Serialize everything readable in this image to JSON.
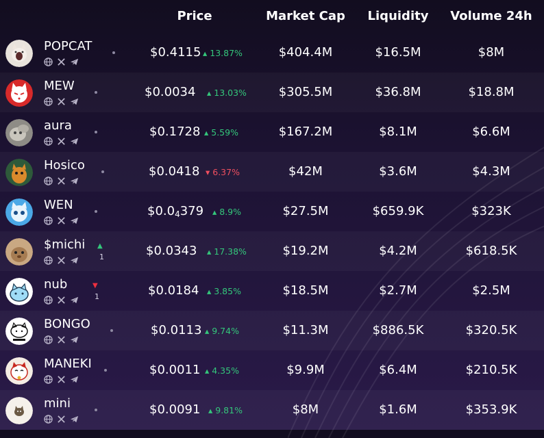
{
  "header": {
    "price": "Price",
    "market_cap": "Market Cap",
    "liquidity": "Liquidity",
    "volume": "Volume 24h"
  },
  "colors": {
    "up": "#34c77b",
    "down": "#ef4f5f",
    "background": "#1c1232"
  },
  "icons": [
    "globe-icon",
    "x-icon",
    "telegram-icon"
  ],
  "tokens": [
    {
      "name": "POPCAT",
      "price": "$0.4115",
      "change": "13.87%",
      "dir": "up",
      "mcap": "$404.4M",
      "liq": "$16.5M",
      "vol": "$8M"
    },
    {
      "name": "MEW",
      "price": "$0.0034",
      "change": "13.03%",
      "dir": "up",
      "mcap": "$305.5M",
      "liq": "$36.8M",
      "vol": "$18.8M"
    },
    {
      "name": "aura",
      "price": "$0.1728",
      "change": "5.59%",
      "dir": "up",
      "mcap": "$167.2M",
      "liq": "$8.1M",
      "vol": "$6.6M"
    },
    {
      "name": "Hosico",
      "price": "$0.0418",
      "change": "6.37%",
      "dir": "down",
      "mcap": "$42M",
      "liq": "$3.6M",
      "vol": "$4.3M"
    },
    {
      "name": "WEN",
      "price_a": "$0.0",
      "price_sub": "4",
      "price_b": "379",
      "change": "8.9%",
      "dir": "up",
      "mcap": "$27.5M",
      "liq": "$659.9K",
      "vol": "$323K"
    },
    {
      "name": "$michi",
      "rank_dir": "up",
      "rank_change": "1",
      "price": "$0.0343",
      "change": "17.38%",
      "dir": "up",
      "mcap": "$19.2M",
      "liq": "$4.2M",
      "vol": "$618.5K"
    },
    {
      "name": "nub",
      "rank_dir": "down",
      "rank_change": "1",
      "price": "$0.0184",
      "change": "3.85%",
      "dir": "up",
      "mcap": "$18.5M",
      "liq": "$2.7M",
      "vol": "$2.5M"
    },
    {
      "name": "BONGO",
      "price": "$0.0113",
      "change": "9.74%",
      "dir": "up",
      "mcap": "$11.3M",
      "liq": "$886.5K",
      "vol": "$320.5K"
    },
    {
      "name": "MANEKI",
      "price": "$0.0011",
      "change": "4.35%",
      "dir": "up",
      "mcap": "$9.9M",
      "liq": "$6.4M",
      "vol": "$210.5K"
    },
    {
      "name": "mini",
      "price": "$0.0091",
      "change": "9.81%",
      "dir": "up",
      "mcap": "$8M",
      "liq": "$1.6M",
      "vol": "$353.9K"
    }
  ]
}
